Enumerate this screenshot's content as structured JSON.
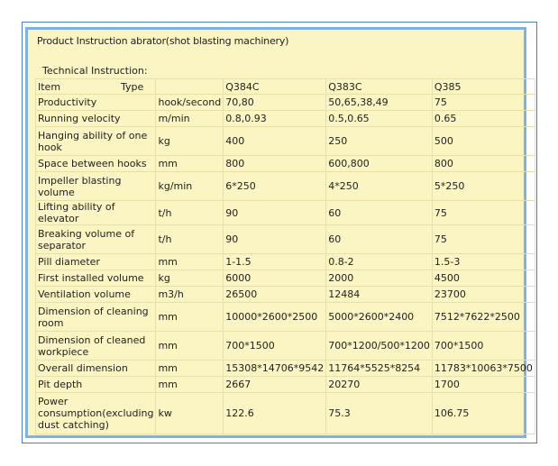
{
  "title": "Product Instruction abrator(shot blasting machinery)",
  "subtitle": "Technical Instruction:",
  "header": {
    "item": "Item",
    "type": "Type",
    "models": [
      "Q384C",
      "Q383C",
      "Q385"
    ]
  },
  "rows": [
    {
      "item": "Productivity",
      "unit": "hook/second",
      "values": [
        "70,80",
        "50,65,38,49",
        "75"
      ]
    },
    {
      "item": "Running velocity",
      "unit": "m/min",
      "values": [
        "0.8,0.93",
        "0.5,0.65",
        "0.65"
      ]
    },
    {
      "item": "Hanging ability of one hook",
      "unit": "kg",
      "values": [
        "400",
        "250",
        "500"
      ]
    },
    {
      "item": "Space between hooks",
      "unit": "mm",
      "values": [
        "800",
        "600,800",
        "800"
      ]
    },
    {
      "item": "Impeller blasting volume",
      "unit": "kg/min",
      "values": [
        "6*250",
        "4*250",
        "5*250"
      ]
    },
    {
      "item": "Lifting ability of elevator",
      "unit": "t/h",
      "values": [
        "90",
        "60",
        "75"
      ]
    },
    {
      "item": "Breaking volume of separator",
      "unit": "t/h",
      "values": [
        "90",
        "60",
        "75"
      ]
    },
    {
      "item": "Pill diameter",
      "unit": "mm",
      "values": [
        "1-1.5",
        "0.8-2",
        "1.5-3"
      ]
    },
    {
      "item": "First installed volume",
      "unit": "kg",
      "values": [
        "6000",
        "2000",
        "4500"
      ]
    },
    {
      "item": "Ventilation volume",
      "unit": "m3/h",
      "values": [
        "26500",
        "12484",
        "23700"
      ]
    },
    {
      "item": "Dimension of cleaning room",
      "unit": "mm",
      "values": [
        "10000*2600*2500",
        "5000*2600*2400",
        "7512*7622*2500"
      ]
    },
    {
      "item": "Dimension of cleaned workpiece",
      "unit": "mm",
      "values": [
        "700*1500",
        "700*1200/500*1200",
        "700*1500"
      ]
    },
    {
      "item": "Overall dimension",
      "unit": "mm",
      "values": [
        "15308*14706*9542",
        "11764*5525*8254",
        "11783*10063*7500"
      ]
    },
    {
      "item": "Pit depth",
      "unit": "mm",
      "values": [
        "2667",
        "20270",
        "1700"
      ]
    },
    {
      "item": "Power consumption(excluding dust catching)",
      "unit": "kw",
      "values": [
        "122.6",
        "75.3",
        "106.75"
      ]
    }
  ]
}
